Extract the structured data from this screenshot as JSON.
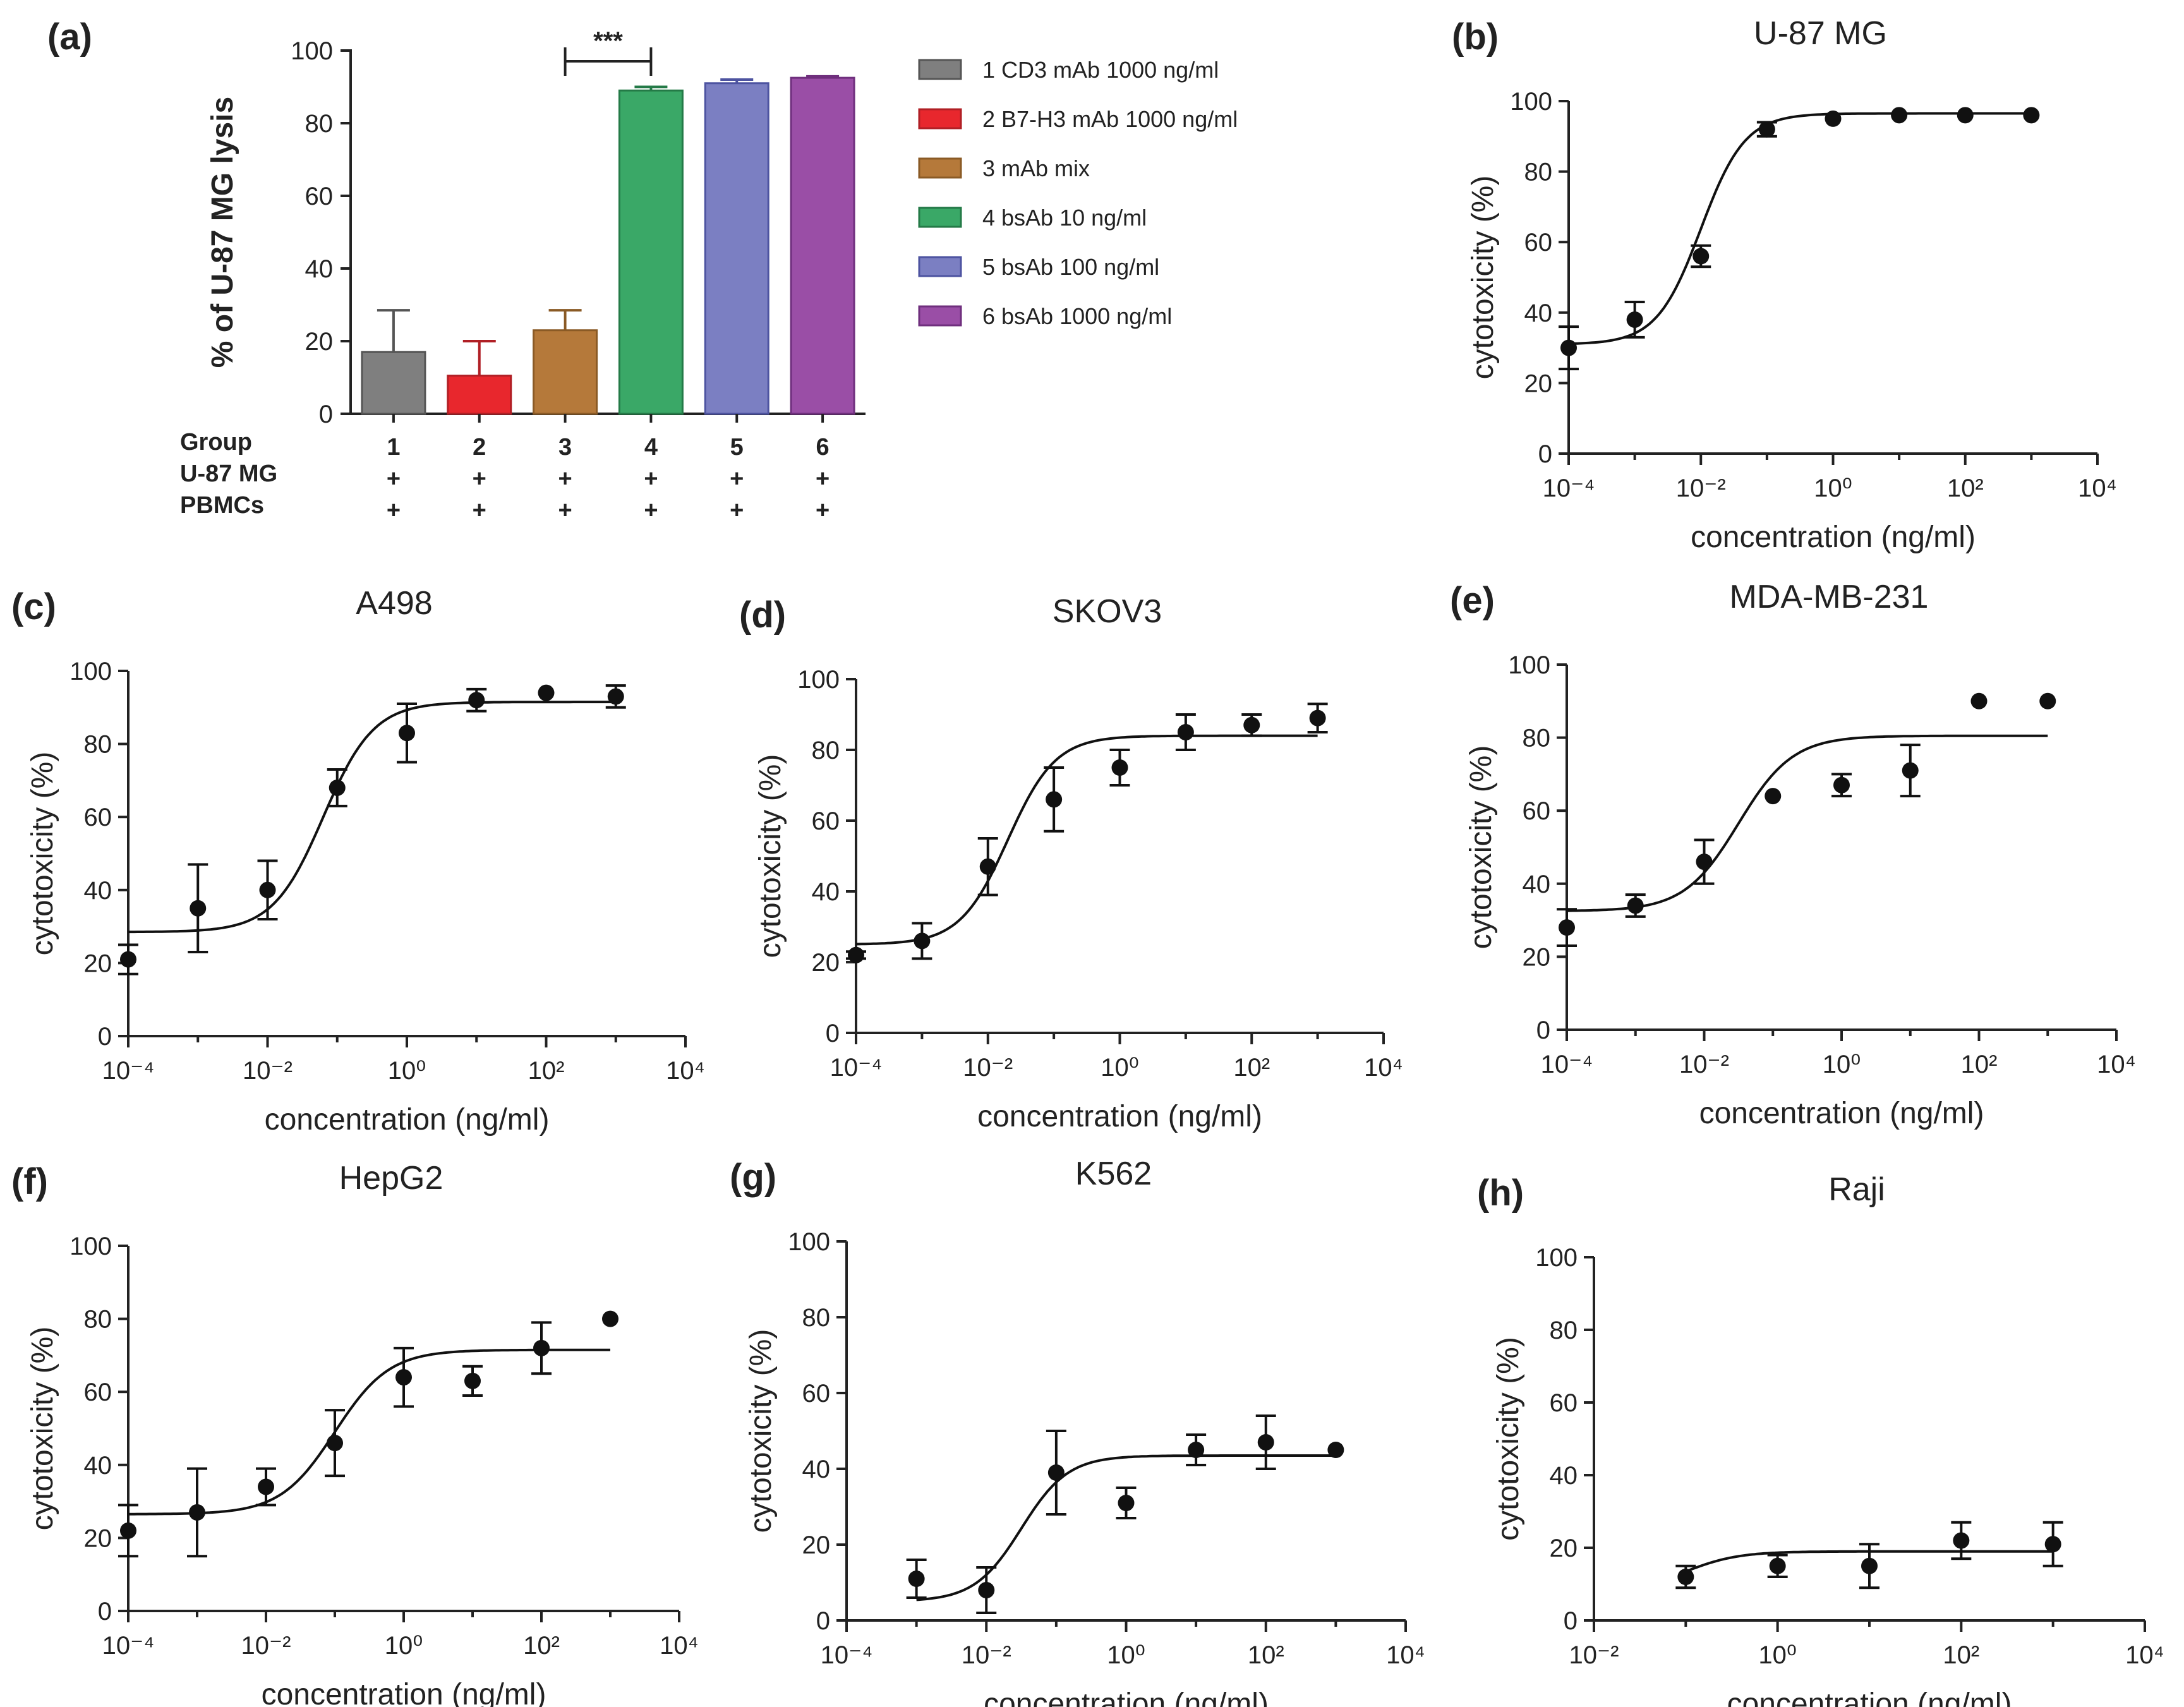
{
  "figure": {
    "panel_a": {
      "letter": "(a)",
      "ylabel": "% of U-87 MG lysis",
      "significance": "***",
      "row_labels": [
        "Group",
        "U-87  MG",
        "PBMCs"
      ],
      "plus": "+"
    }
  },
  "chart_data": [
    {
      "id": "a",
      "type": "bar",
      "title": "",
      "ylabel": "% of U-87 MG lysis",
      "ylim": [
        0,
        100
      ],
      "yticks": [
        0,
        20,
        40,
        60,
        80,
        100
      ],
      "categories": [
        "1",
        "2",
        "3",
        "4",
        "5",
        "6"
      ],
      "values": [
        17,
        10.5,
        23,
        89,
        91,
        92.5
      ],
      "errors": [
        11.5,
        9.5,
        5.5,
        1,
        1,
        0.4
      ],
      "colors": [
        "#7f7f7f",
        "#e8272d",
        "#b5793a",
        "#3aa867",
        "#7b7fc2",
        "#9a4ea6"
      ],
      "edge_colors": [
        "#555555",
        "#b01f25",
        "#8a5a25",
        "#247a47",
        "#4d53a0",
        "#6f2f7d"
      ],
      "legend": [
        "1 CD3 mAb 1000 ng/ml",
        "2 B7-H3 mAb 1000 ng/ml",
        "3 mAb mix",
        "4 bsAb 10 ng/ml",
        "5 bsAb 100 ng/ml",
        "6 bsAb 1000 ng/ml"
      ],
      "legend_position": "right",
      "significance": {
        "from": "3",
        "to": "4",
        "label": "***"
      }
    },
    {
      "id": "b",
      "letter": "(b)",
      "type": "scatter",
      "title": "U-87 MG",
      "xlabel": "concentration (ng/ml)",
      "ylabel": "cytotoxicity (%)",
      "x_scale": "log",
      "xlim": [
        0.0001,
        10000
      ],
      "ylim": [
        0,
        100
      ],
      "x": [
        0.0001,
        0.001,
        0.01,
        0.1,
        1,
        10,
        100,
        1000
      ],
      "y": [
        30,
        38,
        56,
        92,
        95,
        96,
        96,
        96
      ],
      "err": [
        6,
        5,
        3,
        2,
        0,
        0,
        0,
        0
      ],
      "fit": {
        "bottom": 31,
        "top": 96.5,
        "log_ec50": -2,
        "hill": 1.3,
        "x_range": [
          0.0001,
          1000
        ]
      }
    },
    {
      "id": "c",
      "letter": "(c)",
      "type": "scatter",
      "title": "A498",
      "xlabel": "concentration (ng/ml)",
      "ylabel": "cytotoxicity (%)",
      "x_scale": "log",
      "xlim": [
        0.0001,
        10000
      ],
      "ylim": [
        0,
        100
      ],
      "x": [
        0.0001,
        0.001,
        0.01,
        0.1,
        1,
        10,
        100,
        1000
      ],
      "y": [
        21,
        35,
        40,
        68,
        83,
        92,
        94,
        93
      ],
      "err": [
        4,
        12,
        8,
        5,
        8,
        3,
        0,
        3
      ],
      "fit": {
        "bottom": 28.5,
        "top": 91.5,
        "log_ec50": -1.2,
        "hill": 1.2,
        "x_range": [
          0.0001,
          1000
        ]
      }
    },
    {
      "id": "d",
      "letter": "(d)",
      "type": "scatter",
      "title": "SKOV3",
      "xlabel": "concentration (ng/ml)",
      "ylabel": "cytotoxicity (%)",
      "x_scale": "log",
      "xlim": [
        0.0001,
        10000
      ],
      "ylim": [
        0,
        100
      ],
      "x": [
        0.0001,
        0.001,
        0.01,
        0.1,
        1,
        10,
        100,
        1000
      ],
      "y": [
        22,
        26,
        47,
        66,
        75,
        85,
        87,
        89
      ],
      "err": [
        1,
        5,
        8,
        9,
        5,
        5,
        3,
        4
      ],
      "fit": {
        "bottom": 25,
        "top": 84,
        "log_ec50": -1.7,
        "hill": 1.2,
        "x_range": [
          0.0001,
          1000
        ]
      }
    },
    {
      "id": "e",
      "letter": "(e)",
      "type": "scatter",
      "title": "MDA-MB-231",
      "xlabel": "concentration (ng/ml)",
      "ylabel": "cytotoxicity (%)",
      "x_scale": "log",
      "xlim": [
        0.0001,
        10000
      ],
      "ylim": [
        0,
        100
      ],
      "x": [
        0.0001,
        0.001,
        0.01,
        0.1,
        1,
        10,
        100,
        1000
      ],
      "y": [
        28,
        34,
        46,
        64,
        67,
        71,
        90,
        90
      ],
      "err": [
        5,
        3,
        6,
        0,
        3,
        7,
        0,
        0
      ],
      "fit": {
        "bottom": 32.5,
        "top": 80.5,
        "log_ec50": -1.5,
        "hill": 1.1,
        "x_range": [
          0.0001,
          1000
        ]
      }
    },
    {
      "id": "f",
      "letter": "(f)",
      "type": "scatter",
      "title": "HepG2",
      "xlabel": "concentration (ng/ml)",
      "ylabel": "cytotoxicity (%)",
      "x_scale": "log",
      "xlim": [
        0.0001,
        10000
      ],
      "ylim": [
        0,
        100
      ],
      "x": [
        0.0001,
        0.001,
        0.01,
        0.1,
        1,
        10,
        100,
        1000
      ],
      "y": [
        22,
        27,
        34,
        46,
        64,
        63,
        72,
        80
      ],
      "err": [
        7,
        12,
        5,
        9,
        8,
        4,
        7,
        0
      ],
      "fit": {
        "bottom": 26.5,
        "top": 71.5,
        "log_ec50": -1,
        "hill": 1.1,
        "x_range": [
          0.0001,
          1000
        ]
      }
    },
    {
      "id": "g",
      "letter": "(g)",
      "type": "scatter",
      "title": "K562",
      "xlabel": "concentration (ng/ml)",
      "ylabel": "cytotoxicity (%)",
      "x_scale": "log",
      "xlim": [
        0.0001,
        10000
      ],
      "ylim": [
        0,
        100
      ],
      "x": [
        0.001,
        0.01,
        0.1,
        1,
        10,
        100,
        1000
      ],
      "y": [
        11,
        8,
        39,
        31,
        45,
        47,
        45
      ],
      "err": [
        5,
        6,
        11,
        4,
        4,
        7,
        0
      ],
      "fit": {
        "bottom": 5,
        "top": 43.5,
        "log_ec50": -1.5,
        "hill": 1.3,
        "x_range": [
          0.001,
          1000
        ]
      }
    },
    {
      "id": "h",
      "letter": "(h)",
      "type": "scatter",
      "title": "Raji",
      "xlabel": "concentration (ng/ml)",
      "ylabel": "cytotoxicity (%)",
      "x_scale": "log",
      "xlim": [
        0.01,
        10000
      ],
      "ylim": [
        0,
        100
      ],
      "x": [
        0.1,
        1,
        10,
        100,
        1000
      ],
      "y": [
        12,
        15,
        15,
        22,
        21
      ],
      "err": [
        3,
        3,
        6,
        5,
        6
      ],
      "fit": {
        "bottom": 8,
        "top": 19,
        "log_ec50": -1,
        "hill": 1.5,
        "x_range": [
          0.1,
          1000
        ]
      }
    }
  ]
}
